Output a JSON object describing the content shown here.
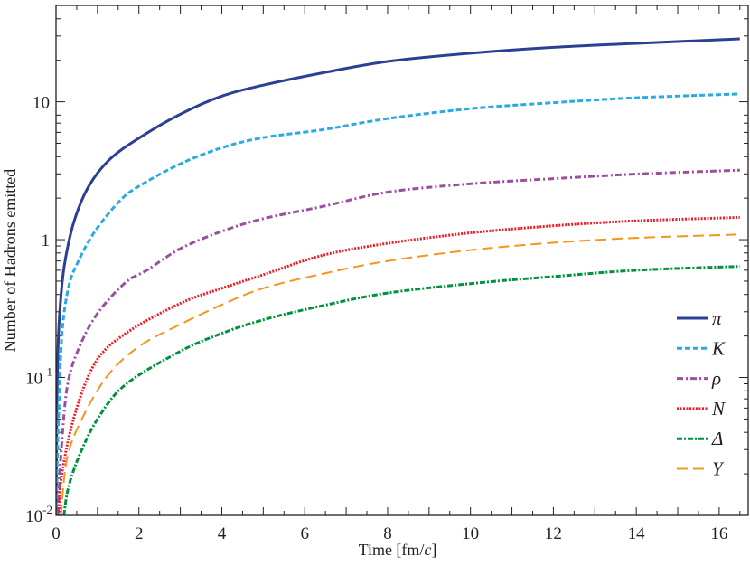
{
  "chart_data": {
    "type": "line",
    "title": "",
    "xlabel": "Time  [fm/c]",
    "xlabel_parts": {
      "main": "Time  [fm/",
      "italic": "c",
      "close": "]"
    },
    "ylabel": "Number of Hadrons emitted",
    "xlim": [
      0,
      16.7
    ],
    "ylim": [
      0.01,
      50
    ],
    "y_scale": "log",
    "grid": false,
    "legend_position": "right",
    "x_ticks": [
      0,
      2,
      4,
      6,
      8,
      10,
      12,
      14,
      16
    ],
    "x_tick_labels": [
      "0",
      "2",
      "4",
      "6",
      "8",
      "10",
      "12",
      "14",
      "16"
    ],
    "y_ticks": [
      0.01,
      0.1,
      1,
      10
    ],
    "y_tick_labels": [
      {
        "base": "10",
        "exp": "-2"
      },
      {
        "base": "10",
        "exp": "-1"
      },
      {
        "base": "1",
        "exp": ""
      },
      {
        "base": "10",
        "exp": ""
      }
    ],
    "series": [
      {
        "name": "π",
        "color": "#2b3f94",
        "style": "solid",
        "points": [
          [
            0.005,
            0.01
          ],
          [
            0.02,
            0.06
          ],
          [
            0.05,
            0.17
          ],
          [
            0.1,
            0.33
          ],
          [
            0.2,
            0.65
          ],
          [
            0.43,
            1.34
          ],
          [
            0.79,
            2.44
          ],
          [
            1.3,
            3.83
          ],
          [
            2,
            5.45
          ],
          [
            3,
            8.13
          ],
          [
            4,
            11.0
          ],
          [
            5,
            13.2
          ],
          [
            6.43,
            16.2
          ],
          [
            8,
            19.6
          ],
          [
            10,
            22.5
          ],
          [
            12,
            24.8
          ],
          [
            14,
            26.5
          ],
          [
            16.5,
            28.6
          ]
        ]
      },
      {
        "name": "K",
        "color": "#29abe2",
        "style": "dashed",
        "points": [
          [
            0.01,
            0.01
          ],
          [
            0.03,
            0.025
          ],
          [
            0.06,
            0.05
          ],
          [
            0.14,
            0.2
          ],
          [
            0.3,
            0.45
          ],
          [
            0.54,
            0.7
          ],
          [
            0.94,
            1.15
          ],
          [
            1.53,
            1.9
          ],
          [
            2,
            2.44
          ],
          [
            3,
            3.55
          ],
          [
            4,
            4.64
          ],
          [
            5,
            5.5
          ],
          [
            6.43,
            6.27
          ],
          [
            8,
            7.55
          ],
          [
            10,
            8.91
          ],
          [
            12,
            9.85
          ],
          [
            14,
            10.7
          ],
          [
            16.5,
            11.4
          ]
        ]
      },
      {
        "name": "ρ",
        "color": "#9b4fa0",
        "style": "dash-dot-dot",
        "points": [
          [
            0.05,
            0.01
          ],
          [
            0.08,
            0.016
          ],
          [
            0.13,
            0.031
          ],
          [
            0.28,
            0.089
          ],
          [
            0.58,
            0.171
          ],
          [
            1.02,
            0.297
          ],
          [
            1.68,
            0.49
          ],
          [
            2.19,
            0.6
          ],
          [
            3,
            0.86
          ],
          [
            4,
            1.15
          ],
          [
            5,
            1.42
          ],
          [
            6.43,
            1.74
          ],
          [
            8,
            2.21
          ],
          [
            10,
            2.54
          ],
          [
            12,
            2.77
          ],
          [
            14,
            2.99
          ],
          [
            16.5,
            3.19
          ]
        ]
      },
      {
        "name": "N",
        "color": "#ed1c24",
        "style": "dotted",
        "points": [
          [
            0.07,
            0.01
          ],
          [
            0.13,
            0.019
          ],
          [
            0.43,
            0.051
          ],
          [
            0.94,
            0.127
          ],
          [
            1.68,
            0.209
          ],
          [
            3,
            0.345
          ],
          [
            4,
            0.444
          ],
          [
            5,
            0.556
          ],
          [
            6.43,
            0.77
          ],
          [
            8,
            0.94
          ],
          [
            10,
            1.12
          ],
          [
            12,
            1.26
          ],
          [
            14,
            1.37
          ],
          [
            16.5,
            1.45
          ]
        ]
      },
      {
        "name": "Δ",
        "color": "#00923f",
        "style": "dash-dot",
        "points": [
          [
            0.19,
            0.01
          ],
          [
            0.3,
            0.016
          ],
          [
            0.58,
            0.028
          ],
          [
            1.02,
            0.051
          ],
          [
            1.68,
            0.089
          ],
          [
            3,
            0.155
          ],
          [
            4,
            0.209
          ],
          [
            5,
            0.262
          ],
          [
            6.43,
            0.332
          ],
          [
            8,
            0.41
          ],
          [
            10,
            0.48
          ],
          [
            12,
            0.54
          ],
          [
            14,
            0.6
          ],
          [
            16.5,
            0.64
          ]
        ]
      },
      {
        "name": "Y",
        "color": "#f7941d",
        "style": "long-dash",
        "points": [
          [
            0.12,
            0.01
          ],
          [
            0.28,
            0.027
          ],
          [
            0.72,
            0.057
          ],
          [
            1.31,
            0.109
          ],
          [
            2.04,
            0.171
          ],
          [
            3,
            0.243
          ],
          [
            4,
            0.337
          ],
          [
            5,
            0.444
          ],
          [
            6.43,
            0.565
          ],
          [
            8,
            0.7
          ],
          [
            10,
            0.84
          ],
          [
            12,
            0.95
          ],
          [
            14,
            1.03
          ],
          [
            16.5,
            1.09
          ]
        ]
      }
    ]
  }
}
